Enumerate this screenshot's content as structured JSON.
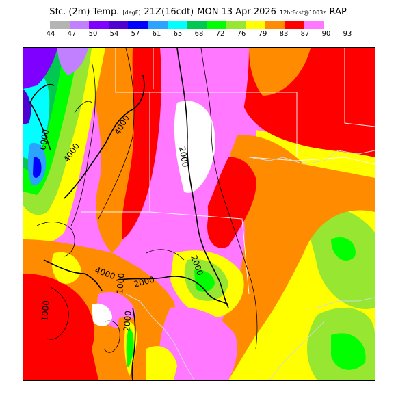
{
  "header": {
    "product": "Sfc. (2m) Temp.",
    "units": "[degF]",
    "valid_time": "21Z(16cdt)",
    "date": "MON 13 Apr 2026",
    "run": "12hrFcst@1003z",
    "model": "RAP"
  },
  "legend": {
    "ticks": [
      "44",
      "47",
      "50",
      "54",
      "57",
      "61",
      "65",
      "68",
      "72",
      "76",
      "79",
      "83",
      "87",
      "90",
      "93"
    ],
    "colors": [
      "#b4b4b4",
      "#c080ff",
      "#8000ff",
      "#5000d0",
      "#0000ff",
      "#2aa4ff",
      "#00ffff",
      "#00c850",
      "#00ff00",
      "#96e632",
      "#ffff00",
      "#ff8c00",
      "#ff0000",
      "#ff78ff"
    ]
  },
  "map": {
    "contour_labels": [
      "6000",
      "4000",
      "4000",
      "2000",
      "4000",
      "2000",
      "2000",
      "1000",
      "2000",
      "1000"
    ]
  }
}
